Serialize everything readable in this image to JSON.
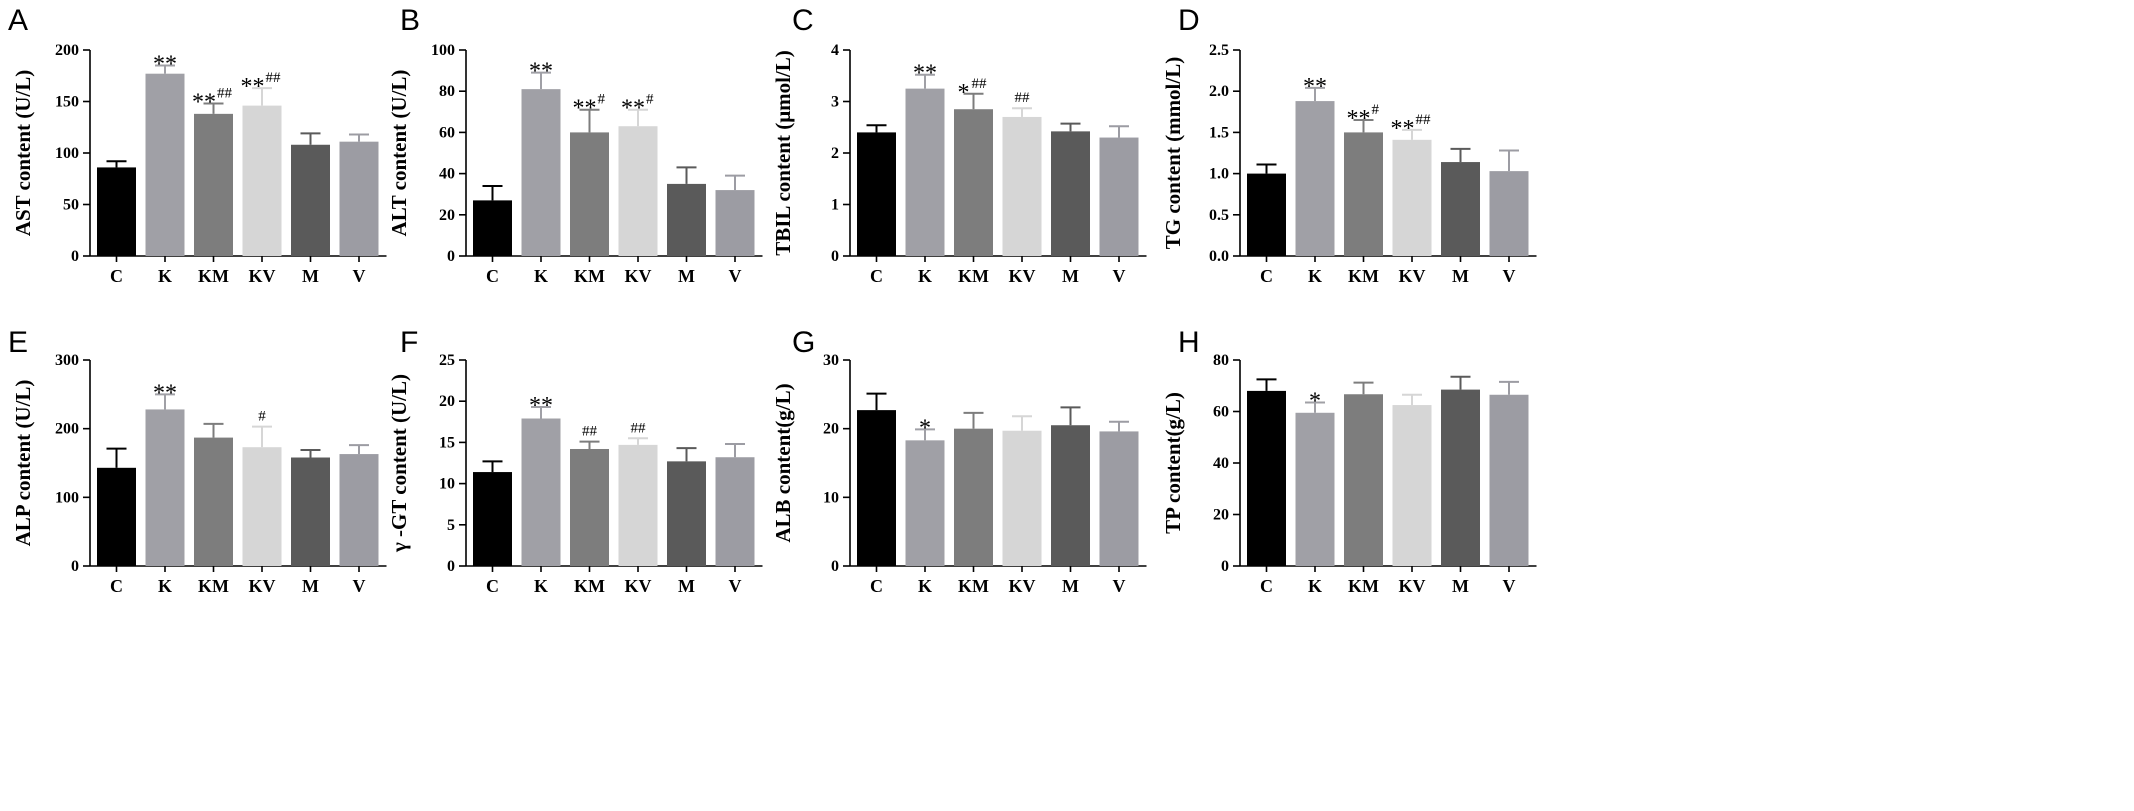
{
  "categories": [
    "C",
    "K",
    "KM",
    "KV",
    "M",
    "V"
  ],
  "colors": {
    "C": "#000000",
    "K": "#a0a0a6",
    "KM": "#7d7d7d",
    "KV": "#d6d6d6",
    "M": "#5a5a5a",
    "V": "#9c9ca3",
    "axis": "#000000"
  },
  "chart_data": [
    {
      "type": "bar",
      "panel": "A",
      "ylabel": "AST content (U/L)",
      "ylim": [
        0,
        200
      ],
      "yticks": [
        0,
        50,
        100,
        150,
        200
      ],
      "categories": [
        "C",
        "K",
        "KM",
        "KV",
        "M",
        "V"
      ],
      "values": [
        86,
        177,
        138,
        146,
        108,
        111
      ],
      "errors": [
        6,
        8,
        10,
        17,
        11,
        7
      ],
      "sig": [
        "",
        "**",
        "**",
        "**",
        "",
        ""
      ],
      "sig2": [
        "",
        "",
        "##",
        "##",
        "",
        ""
      ]
    },
    {
      "type": "bar",
      "panel": "B",
      "ylabel": "ALT content (U/L)",
      "ylim": [
        0,
        100
      ],
      "yticks": [
        0,
        20,
        40,
        60,
        80,
        100
      ],
      "categories": [
        "C",
        "K",
        "KM",
        "KV",
        "M",
        "V"
      ],
      "values": [
        27,
        81,
        60,
        63,
        35,
        32
      ],
      "errors": [
        7,
        8,
        11,
        8,
        8,
        7
      ],
      "sig": [
        "",
        "**",
        "**",
        "**",
        "",
        ""
      ],
      "sig2": [
        "",
        "",
        "#",
        "#",
        "",
        ""
      ]
    },
    {
      "type": "bar",
      "panel": "C",
      "ylabel": "TBIL content (μmol/L)",
      "ylim": [
        0,
        4
      ],
      "yticks": [
        0,
        1,
        2,
        3,
        4
      ],
      "categories": [
        "C",
        "K",
        "KM",
        "KV",
        "M",
        "V"
      ],
      "values": [
        2.4,
        3.25,
        2.85,
        2.7,
        2.42,
        2.3
      ],
      "errors": [
        0.14,
        0.27,
        0.3,
        0.17,
        0.15,
        0.22
      ],
      "sig": [
        "",
        "**",
        "*",
        "",
        "",
        ""
      ],
      "sig2": [
        "",
        "",
        "##",
        "##",
        "",
        ""
      ]
    },
    {
      "type": "bar",
      "panel": "D",
      "ylabel": "TG content (mmol/L)",
      "ylim": [
        0,
        2.5
      ],
      "yticks": [
        "0.0",
        "0.5",
        "1.0",
        "1.5",
        "2.0",
        "2.5"
      ],
      "categories": [
        "C",
        "K",
        "KM",
        "KV",
        "M",
        "V"
      ],
      "values": [
        1.0,
        1.88,
        1.5,
        1.41,
        1.14,
        1.03
      ],
      "errors": [
        0.11,
        0.16,
        0.15,
        0.12,
        0.16,
        0.25
      ],
      "sig": [
        "",
        "**",
        "**",
        "**",
        "",
        ""
      ],
      "sig2": [
        "",
        "",
        "#",
        "##",
        "",
        ""
      ]
    },
    {
      "type": "bar",
      "panel": "E",
      "ylabel": "ALP content (U/L)",
      "ylim": [
        0,
        300
      ],
      "yticks": [
        0,
        100,
        200,
        300
      ],
      "categories": [
        "C",
        "K",
        "KM",
        "KV",
        "M",
        "V"
      ],
      "values": [
        143,
        228,
        187,
        173,
        158,
        163
      ],
      "errors": [
        28,
        22,
        20,
        30,
        11,
        13
      ],
      "sig": [
        "",
        "**",
        "",
        "",
        "",
        ""
      ],
      "sig2": [
        "",
        "",
        "",
        "#",
        "",
        ""
      ]
    },
    {
      "type": "bar",
      "panel": "F",
      "ylabel": "γ -GT content (U/L)",
      "ylim": [
        0,
        25
      ],
      "yticks": [
        0,
        5,
        10,
        15,
        20,
        25
      ],
      "categories": [
        "C",
        "K",
        "KM",
        "KV",
        "M",
        "V"
      ],
      "values": [
        11.4,
        17.9,
        14.2,
        14.7,
        12.7,
        13.2
      ],
      "errors": [
        1.3,
        1.4,
        0.9,
        0.8,
        1.6,
        1.6
      ],
      "sig": [
        "",
        "**",
        "",
        "",
        "",
        ""
      ],
      "sig2": [
        "",
        "",
        "##",
        "##",
        "",
        ""
      ]
    },
    {
      "type": "bar",
      "panel": "G",
      "ylabel": "ALB content(g/L)",
      "ylim": [
        0,
        30
      ],
      "yticks": [
        0,
        10,
        20,
        30
      ],
      "categories": [
        "C",
        "K",
        "KM",
        "KV",
        "M",
        "V"
      ],
      "values": [
        22.7,
        18.3,
        20.0,
        19.7,
        20.5,
        19.6
      ],
      "errors": [
        2.4,
        1.6,
        2.3,
        2.1,
        2.6,
        1.4
      ],
      "sig": [
        "",
        "*",
        "",
        "",
        "",
        ""
      ],
      "sig2": [
        "",
        "",
        "",
        "",
        "",
        ""
      ]
    },
    {
      "type": "bar",
      "panel": "H",
      "ylabel": "TP content(g/L)",
      "ylim": [
        0,
        80
      ],
      "yticks": [
        0,
        20,
        40,
        60,
        80
      ],
      "categories": [
        "C",
        "K",
        "KM",
        "KV",
        "M",
        "V"
      ],
      "values": [
        68,
        59.5,
        66.7,
        62.5,
        68.5,
        66.5
      ],
      "errors": [
        4.5,
        4,
        4.5,
        4,
        5,
        5
      ],
      "sig": [
        "",
        "*",
        "",
        "",
        "",
        ""
      ],
      "sig2": [
        "",
        "",
        "",
        "",
        "",
        ""
      ]
    }
  ]
}
